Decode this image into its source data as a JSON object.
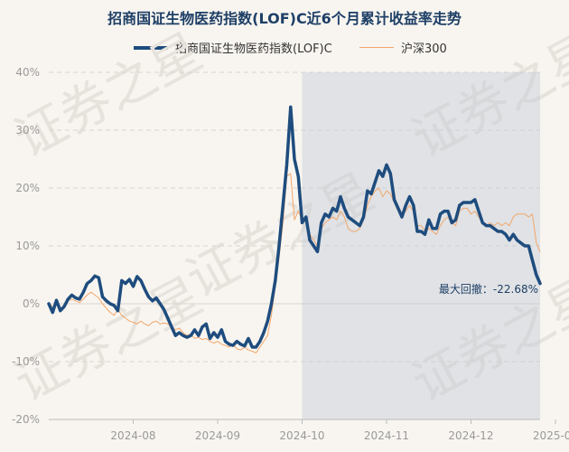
{
  "chart_data": {
    "type": "line",
    "title": "招商国证生物医药指数(LOF)C近6个月累计收益率走势",
    "ylim": [
      -20,
      40
    ],
    "y_ticks": [
      "40%",
      "30%",
      "20%",
      "10%",
      "0%",
      "-10%",
      "-20%"
    ],
    "y_tick_values": [
      40,
      30,
      20,
      10,
      0,
      -10,
      -20
    ],
    "x_tick_labels": [
      "2024-08",
      "2024-09",
      "2024-10",
      "2024-11",
      "2024-12",
      "2025-01"
    ],
    "x_tick_index": [
      22,
      44,
      66,
      88,
      110,
      132
    ],
    "max_drawdown_label": "最大回撤：-22.68%",
    "max_drawdown_start_index": 66,
    "watermark": "证券之星",
    "series": [
      {
        "name": "招商国证生物医药指数(LOF)C",
        "color": "#1e4c7e",
        "values": [
          0.0,
          -1.5,
          0.6,
          -1.2,
          -0.5,
          0.8,
          1.5,
          1.0,
          0.8,
          2.0,
          3.5,
          4.0,
          4.8,
          4.5,
          1.2,
          0.5,
          0.0,
          -0.3,
          -1.2,
          4.0,
          3.5,
          4.2,
          3.0,
          4.7,
          4.0,
          2.5,
          1.2,
          0.5,
          1.0,
          0.0,
          -1.0,
          -2.5,
          -4.0,
          -5.5,
          -5.0,
          -5.5,
          -5.8,
          -5.5,
          -4.5,
          -5.5,
          -4.0,
          -3.5,
          -6.0,
          -5.0,
          -5.8,
          -4.5,
          -6.5,
          -7.0,
          -7.2,
          -6.5,
          -7.0,
          -7.3,
          -6.0,
          -7.5,
          -7.5,
          -6.5,
          -5.0,
          -3.0,
          0.0,
          4.0,
          10.0,
          17.0,
          24.0,
          34.0,
          25.0,
          22.0,
          14.0,
          15.0,
          11.0,
          10.0,
          9.0,
          14.0,
          15.5,
          15.0,
          16.5,
          16.0,
          18.5,
          16.5,
          15.0,
          14.5,
          14.0,
          13.5,
          15.0,
          19.5,
          19.0,
          21.0,
          23.0,
          22.0,
          24.0,
          22.5,
          18.0,
          16.5,
          15.0,
          17.0,
          18.5,
          17.0,
          12.5,
          12.5,
          12.0,
          14.5,
          13.0,
          13.0,
          15.5,
          16.0,
          16.0,
          14.0,
          14.5,
          17.0,
          17.5,
          17.5,
          17.5,
          18.0,
          16.0,
          14.0,
          13.5,
          13.5,
          13.0,
          12.5,
          12.5,
          12.0,
          11.0,
          12.0,
          11.0,
          10.5,
          10.0,
          10.0,
          7.5,
          5.0,
          3.5
        ]
      },
      {
        "name": "沪深300",
        "color": "#f2a66a",
        "values": [
          0.0,
          -0.5,
          -0.2,
          -0.8,
          -0.3,
          0.5,
          0.8,
          0.5,
          0.2,
          0.8,
          1.5,
          2.0,
          1.5,
          1.0,
          0.0,
          -0.8,
          -1.5,
          -2.0,
          -1.0,
          -2.0,
          -2.5,
          -3.0,
          -3.2,
          -3.5,
          -3.0,
          -3.5,
          -3.8,
          -3.2,
          -3.0,
          -3.5,
          -3.3,
          -3.5,
          -4.0,
          -4.5,
          -4.2,
          -5.0,
          -5.5,
          -5.2,
          -6.0,
          -5.8,
          -6.2,
          -6.0,
          -6.5,
          -6.8,
          -6.5,
          -7.0,
          -7.2,
          -7.5,
          -7.0,
          -7.8,
          -8.0,
          -7.5,
          -8.0,
          -8.2,
          -8.5,
          -7.5,
          -6.5,
          -5.5,
          -2.0,
          3.0,
          8.0,
          14.0,
          22.0,
          22.5,
          14.5,
          16.0,
          14.5,
          15.0,
          12.0,
          11.0,
          10.0,
          13.0,
          14.0,
          14.5,
          15.0,
          14.5,
          16.0,
          15.0,
          13.0,
          12.5,
          12.5,
          13.0,
          14.5,
          17.0,
          18.5,
          19.5,
          20.0,
          18.5,
          19.5,
          19.0,
          17.5,
          16.0,
          15.5,
          16.0,
          17.0,
          16.0,
          13.5,
          13.5,
          12.5,
          13.0,
          12.5,
          12.0,
          13.5,
          14.5,
          15.0,
          14.0,
          13.5,
          16.0,
          16.5,
          16.5,
          15.5,
          16.0,
          15.0,
          14.0,
          13.5,
          14.0,
          13.5,
          14.0,
          13.5,
          14.0,
          13.5,
          15.0,
          15.5,
          15.5,
          15.5,
          15.0,
          15.5,
          10.5,
          9.0
        ]
      }
    ]
  }
}
